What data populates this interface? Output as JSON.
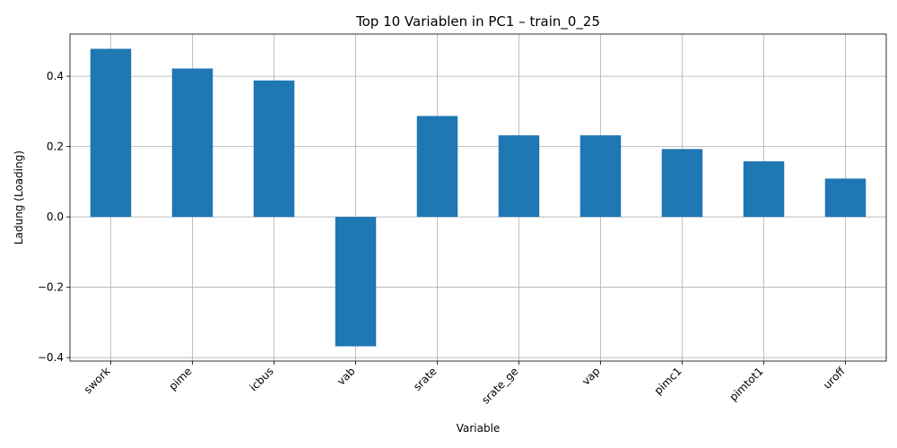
{
  "chart_data": {
    "type": "bar",
    "title": "Top 10 Variablen in PC1 – train_0_25",
    "xlabel": "Variable",
    "ylabel": "Ladung (Loading)",
    "categories": [
      "swork",
      "pime",
      "icbus",
      "vab",
      "srate",
      "srate_ge",
      "vap",
      "pimc1",
      "pimtot1",
      "uroff"
    ],
    "values": [
      0.478,
      0.422,
      0.388,
      -0.368,
      0.287,
      0.232,
      0.232,
      0.193,
      0.158,
      0.109
    ],
    "ylim": [
      -0.41,
      0.52
    ],
    "yticks": [
      -0.4,
      -0.2,
      0.0,
      0.2,
      0.4
    ],
    "ytick_labels": [
      "−0.4",
      "−0.2",
      "0.0",
      "0.2",
      "0.4"
    ],
    "grid": true,
    "legend": "none",
    "colors": {
      "bar": "#1f77b4"
    }
  }
}
